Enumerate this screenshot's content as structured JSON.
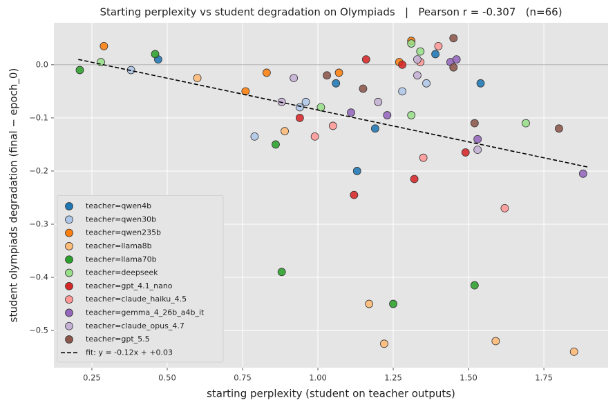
{
  "chart_data": {
    "type": "scatter",
    "title": "Starting perplexity vs student degradation on Olympiads   |   Pearson r = -0.307   (n=66)",
    "x_label": "starting perplexity (student on teacher outputs)",
    "y_label": "student olympiads degradation (final − epoch_0)",
    "xlim": [
      0.124,
      1.963
    ],
    "ylim": [
      -0.57,
      0.079
    ],
    "xticks": [
      0.25,
      {
        "value": 0.5,
        "label": "0.50"
      },
      0.75,
      {
        "value": 1.0,
        "label": "1.00"
      },
      1.25,
      {
        "value": 1.5,
        "label": "1.50"
      },
      1.75
    ],
    "yticks": [
      {
        "value": 0,
        "label": "0.0"
      },
      {
        "value": -0.1,
        "label": "−0.1"
      },
      {
        "value": -0.2,
        "label": "−0.2"
      },
      {
        "value": -0.3,
        "label": "−0.3"
      },
      {
        "value": -0.4,
        "label": "−0.4"
      },
      {
        "value": -0.5,
        "label": "−0.5"
      }
    ],
    "grid": true,
    "reference_line": 0,
    "legend": "lower left",
    "series": [
      {
        "name": "teacher=qwen4b",
        "color": "#1f77b4",
        "x": [
          0.47,
          1.06,
          1.19,
          1.13,
          1.39,
          1.54
        ],
        "values": [
          0.01,
          -0.035,
          -0.12,
          -0.2,
          0.02,
          -0.035
        ]
      },
      {
        "name": "teacher=qwen30b",
        "color": "#aec7e8",
        "x": [
          0.38,
          0.79,
          0.96,
          0.94,
          1.28,
          1.36
        ],
        "values": [
          -0.01,
          -0.135,
          -0.07,
          -0.08,
          -0.05,
          -0.035
        ]
      },
      {
        "name": "teacher=qwen235b",
        "color": "#ff7f0e",
        "x": [
          0.29,
          0.83,
          0.76,
          1.07,
          1.27,
          1.31
        ],
        "values": [
          0.035,
          -0.015,
          -0.05,
          -0.015,
          0.005,
          0.045
        ]
      },
      {
        "name": "teacher=llama8b",
        "color": "#ffbb78",
        "x": [
          0.6,
          0.89,
          1.17,
          1.22,
          1.59,
          1.85
        ],
        "values": [
          -0.025,
          -0.125,
          -0.45,
          -0.525,
          -0.52,
          -0.54
        ]
      },
      {
        "name": "teacher=llama70b",
        "color": "#2ca02c",
        "x": [
          0.21,
          0.46,
          0.86,
          0.88,
          1.25,
          1.52
        ],
        "values": [
          -0.01,
          0.02,
          -0.15,
          -0.39,
          -0.45,
          -0.415
        ]
      },
      {
        "name": "teacher=deepseek",
        "color": "#98df8a",
        "x": [
          0.28,
          1.01,
          1.31,
          1.34,
          1.31,
          1.69
        ],
        "values": [
          0.005,
          -0.08,
          0.04,
          0.025,
          -0.095,
          -0.11
        ]
      },
      {
        "name": "teacher=gpt_4.1_nano",
        "color": "#d62728",
        "x": [
          0.94,
          1.12,
          1.16,
          1.28,
          1.32,
          1.49
        ],
        "values": [
          -0.1,
          -0.245,
          0.01,
          0.0,
          -0.215,
          -0.165
        ]
      },
      {
        "name": "teacher=claude_haiku_4.5",
        "color": "#ff9896",
        "x": [
          0.99,
          1.05,
          1.34,
          1.4,
          1.35,
          1.62
        ],
        "values": [
          -0.135,
          -0.115,
          0.005,
          0.035,
          -0.175,
          -0.27
        ]
      },
      {
        "name": "teacher=gemma_4_26b_a4b_it",
        "color": "#9467bd",
        "x": [
          1.11,
          1.23,
          1.44,
          1.46,
          1.53,
          1.88
        ],
        "values": [
          -0.09,
          -0.095,
          0.005,
          0.01,
          -0.14,
          -0.205
        ]
      },
      {
        "name": "teacher=claude_opus_4.7",
        "color": "#c5b0d5",
        "x": [
          0.92,
          0.88,
          1.2,
          1.33,
          1.33,
          1.53
        ],
        "values": [
          -0.025,
          -0.07,
          -0.07,
          -0.02,
          0.01,
          -0.16
        ]
      },
      {
        "name": "teacher=gpt_5.5",
        "color": "#8c564b",
        "x": [
          1.03,
          1.15,
          1.45,
          1.45,
          1.52,
          1.8
        ],
        "values": [
          -0.02,
          -0.045,
          0.05,
          -0.005,
          -0.11,
          -0.12
        ]
      },
      {
        "name": "fit: y = -0.12x + +0.03",
        "type": "line",
        "color": "#000000",
        "x": [
          0.205,
          1.9
        ],
        "values": [
          0.01,
          -0.193
        ]
      }
    ]
  }
}
